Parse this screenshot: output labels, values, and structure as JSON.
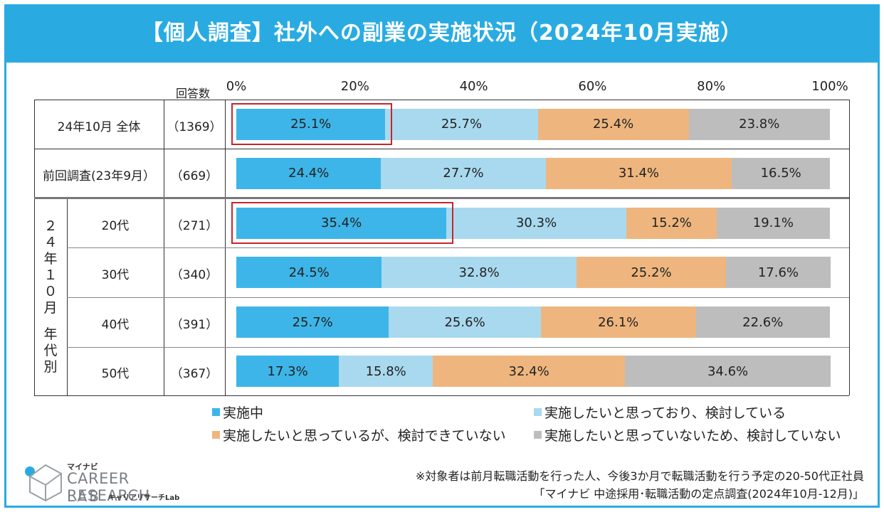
{
  "title": "【個人調査】社外への副業の実施状況（2024年10月実施）",
  "chart_data": {
    "type": "bar",
    "orientation": "horizontal",
    "stacked": true,
    "percent": true,
    "xlim": [
      0,
      100
    ],
    "x_ticks": [
      "0%",
      "20%",
      "40%",
      "60%",
      "80%",
      "100%"
    ],
    "n_header": "回答数",
    "group_label": "２４年１０月 年代別",
    "categories": [
      {
        "label": "24年10月 全体",
        "n": "（1369）"
      },
      {
        "label": "前回調査(23年9月）",
        "n": "（669）"
      },
      {
        "label": "20代",
        "n": "（271）"
      },
      {
        "label": "30代",
        "n": "（340）"
      },
      {
        "label": "40代",
        "n": "（391）"
      },
      {
        "label": "50代",
        "n": "（367）"
      }
    ],
    "series": [
      {
        "name": "実施中",
        "color": "#3eb5e8",
        "values": [
          25.1,
          24.4,
          35.4,
          24.5,
          25.7,
          17.3
        ],
        "labels": [
          "25.1%",
          "24.4%",
          "35.4%",
          "24.5%",
          "25.7%",
          "17.3%"
        ]
      },
      {
        "name": "実施したいと思っており、検討している",
        "color": "#a9d9ee",
        "values": [
          25.7,
          27.7,
          30.3,
          32.8,
          25.6,
          15.8
        ],
        "labels": [
          "25.7%",
          "27.7%",
          "30.3%",
          "32.8%",
          "25.6%",
          "15.8%"
        ]
      },
      {
        "name": "実施したいと思っているが、検討できていない",
        "color": "#eeb67e",
        "values": [
          25.4,
          31.4,
          15.2,
          25.2,
          26.1,
          32.4
        ],
        "labels": [
          "25.4%",
          "31.4%",
          "15.2%",
          "25.2%",
          "26.1%",
          "32.4%"
        ]
      },
      {
        "name": "実施したいと思っていないため、検討していない",
        "color": "#bdbdbd",
        "values": [
          23.8,
          16.5,
          19.1,
          17.6,
          22.6,
          34.6
        ],
        "labels": [
          "23.8%",
          "16.5%",
          "19.1%",
          "17.6%",
          "22.6%",
          "34.6%"
        ]
      }
    ],
    "highlighted": [
      {
        "category": "24年10月 全体",
        "series": "実施中"
      },
      {
        "category": "20代",
        "series": "実施中"
      }
    ],
    "highlight_color": "#c9242b"
  },
  "logo": {
    "small": "マイナビ",
    "line1": "CAREER RESEARCH",
    "line2": "LAB",
    "sub": "キャリアリサーチLab"
  },
  "notes": {
    "line1": "※対象者は前月転職活動を行った人、今後3か月で転職活動を行う予定の20-50代正社員",
    "line2": "「マイナビ 中途採用･転職活動の定点調査(2024年10月-12月)」"
  }
}
